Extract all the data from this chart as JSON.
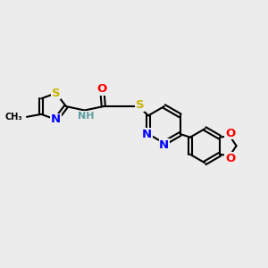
{
  "background_color": "#ececec",
  "bond_color": "#000000",
  "bond_width": 1.5,
  "atom_colors": {
    "S": "#c8b400",
    "N": "#0000ff",
    "O": "#ff0000",
    "C": "#000000",
    "H": "#5f9ea0"
  },
  "font_size": 8.5,
  "title": ""
}
